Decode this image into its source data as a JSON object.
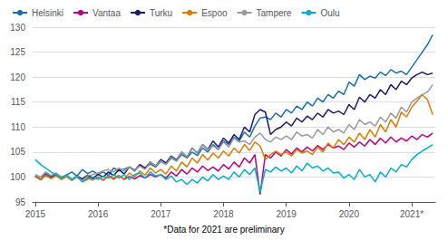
{
  "chart_data": {
    "type": "line",
    "footnote": "*Data for 2021 are preliminary",
    "categories": [
      "2015",
      null,
      null,
      null,
      null,
      null,
      null,
      null,
      null,
      null,
      null,
      null,
      "2016",
      null,
      null,
      null,
      null,
      null,
      null,
      null,
      null,
      null,
      null,
      null,
      "2017",
      null,
      null,
      null,
      null,
      null,
      null,
      null,
      null,
      null,
      null,
      null,
      "2018",
      null,
      null,
      null,
      null,
      null,
      null,
      null,
      null,
      null,
      null,
      null,
      "2019",
      null,
      null,
      null,
      null,
      null,
      null,
      null,
      null,
      null,
      null,
      null,
      "2020",
      null,
      null,
      null,
      null,
      null,
      null,
      null,
      null,
      null,
      null,
      null,
      "2021*",
      null,
      null,
      null,
      null
    ],
    "ylim": [
      95,
      130
    ],
    "yticks": [
      95,
      100,
      105,
      110,
      115,
      120,
      125,
      130
    ],
    "grid": true,
    "legend": "upper left",
    "series": [
      {
        "name": "Helsinki",
        "color": "#1a6faf",
        "values": [
          100.3,
          99.5,
          100.8,
          100.1,
          100.6,
          99.9,
          100.4,
          101.0,
          100.2,
          101.5,
          100.7,
          101.2,
          100.5,
          101.0,
          100.3,
          101.8,
          101.2,
          101.6,
          102.0,
          101.4,
          102.3,
          101.8,
          102.6,
          102.0,
          103.1,
          102.5,
          103.8,
          103.2,
          104.5,
          103.8,
          105.0,
          104.3,
          105.8,
          105.0,
          106.5,
          105.5,
          107.2,
          106.5,
          108.0,
          107.2,
          109.0,
          108.0,
          110.2,
          111.8,
          112.0,
          111.5,
          112.8,
          112.0,
          113.5,
          112.8,
          114.2,
          113.5,
          115.0,
          114.2,
          115.8,
          115.0,
          116.5,
          115.8,
          117.2,
          116.5,
          119.0,
          118.2,
          120.5,
          119.5,
          120.2,
          119.8,
          121.0,
          120.3,
          121.5,
          120.8,
          121.2,
          120.5,
          122.0,
          123.5,
          125.0,
          126.5,
          128.5
        ]
      },
      {
        "name": "Vantaa",
        "color": "#c0007a",
        "values": [
          100.1,
          99.5,
          100.3,
          99.8,
          100.5,
          99.7,
          100.2,
          99.5,
          100.0,
          99.3,
          100.1,
          99.6,
          100.0,
          99.4,
          100.2,
          99.7,
          100.3,
          99.5,
          100.1,
          99.6,
          100.3,
          99.8,
          100.5,
          100.0,
          100.5,
          99.8,
          101.0,
          100.2,
          101.5,
          100.6,
          101.8,
          101.0,
          102.2,
          101.3,
          102.0,
          101.2,
          102.5,
          101.6,
          103.0,
          102.0,
          103.8,
          102.8,
          104.5,
          96.5,
          104.5,
          103.8,
          105.0,
          104.2,
          105.5,
          104.6,
          105.8,
          105.0,
          106.0,
          105.2,
          106.3,
          105.5,
          106.5,
          105.8,
          106.2,
          105.5,
          106.8,
          106.0,
          107.0,
          106.2,
          107.5,
          106.5,
          107.8,
          106.8,
          108.0,
          107.0,
          107.8,
          107.2,
          108.2,
          107.5,
          108.5,
          108.0,
          108.8
        ]
      },
      {
        "name": "Turku",
        "color": "#1a1a6e",
        "values": [
          100.2,
          99.5,
          100.5,
          99.8,
          100.3,
          99.6,
          100.1,
          99.4,
          100.2,
          99.6,
          100.4,
          99.8,
          100.5,
          100.0,
          101.0,
          100.3,
          101.5,
          100.6,
          102.0,
          101.2,
          102.5,
          101.8,
          103.0,
          102.2,
          103.5,
          102.8,
          104.2,
          103.4,
          105.0,
          104.0,
          105.8,
          104.8,
          106.5,
          105.5,
          107.2,
          106.0,
          107.8,
          106.8,
          108.5,
          107.5,
          110.0,
          109.0,
          112.5,
          113.5,
          113.0,
          108.5,
          109.5,
          110.0,
          111.0,
          110.2,
          111.8,
          111.0,
          112.2,
          111.5,
          112.8,
          112.0,
          113.5,
          112.8,
          113.2,
          112.5,
          114.5,
          113.5,
          116.0,
          115.0,
          116.5,
          115.8,
          117.5,
          116.5,
          118.5,
          117.5,
          119.2,
          118.5,
          119.8,
          120.5,
          121.0,
          120.5,
          120.8
        ]
      },
      {
        "name": "Espoo",
        "color": "#e07b00",
        "values": [
          100.2,
          99.5,
          100.4,
          99.7,
          100.3,
          99.5,
          100.1,
          99.3,
          100.0,
          99.2,
          99.8,
          99.4,
          100.0,
          99.3,
          100.2,
          99.5,
          100.3,
          99.6,
          100.8,
          100.0,
          101.2,
          100.4,
          101.8,
          100.8,
          101.5,
          100.6,
          102.2,
          101.2,
          103.0,
          102.0,
          103.8,
          102.8,
          104.5,
          103.4,
          104.8,
          103.8,
          105.2,
          104.2,
          105.8,
          104.8,
          106.5,
          105.3,
          107.0,
          106.2,
          103.5,
          104.5,
          105.2,
          104.5,
          105.0,
          104.2,
          105.5,
          104.8,
          105.2,
          104.5,
          106.0,
          105.0,
          106.8,
          105.8,
          107.5,
          106.5,
          108.0,
          107.0,
          108.8,
          107.5,
          109.5,
          108.0,
          110.5,
          109.0,
          111.5,
          110.0,
          113.0,
          112.0,
          114.0,
          115.2,
          116.5,
          115.5,
          112.5
        ]
      },
      {
        "name": "Tampere",
        "color": "#999999",
        "values": [
          100.5,
          100.0,
          101.0,
          100.3,
          100.8,
          100.0,
          100.3,
          99.5,
          100.0,
          99.3,
          100.2,
          100.5,
          100.8,
          101.2,
          101.5,
          101.0,
          101.8,
          101.2,
          102.0,
          101.3,
          102.2,
          101.5,
          103.0,
          102.2,
          103.2,
          102.5,
          104.0,
          103.2,
          105.0,
          104.0,
          105.8,
          104.8,
          106.5,
          105.5,
          106.2,
          105.5,
          107.0,
          106.0,
          107.8,
          107.0,
          107.2,
          106.5,
          108.0,
          108.8,
          107.5,
          107.0,
          108.0,
          107.5,
          108.2,
          107.5,
          109.0,
          108.2,
          108.5,
          107.8,
          109.5,
          108.5,
          110.0,
          109.0,
          109.5,
          108.8,
          110.5,
          109.5,
          111.5,
          110.5,
          111.0,
          110.2,
          112.0,
          111.0,
          112.8,
          111.8,
          114.0,
          113.0,
          115.0,
          115.8,
          116.5,
          117.0,
          118.5
        ]
      },
      {
        "name": "Oulu",
        "color": "#00b0d0",
        "values": [
          103.5,
          102.5,
          101.8,
          101.0,
          100.5,
          99.8,
          100.5,
          99.5,
          100.2,
          99.0,
          99.5,
          100.0,
          99.5,
          100.2,
          99.8,
          100.5,
          99.8,
          100.5,
          99.5,
          100.5,
          100.8,
          99.8,
          101.0,
          100.2,
          100.5,
          99.5,
          100.2,
          99.0,
          99.5,
          98.5,
          99.5,
          98.8,
          100.0,
          99.2,
          100.5,
          99.5,
          100.2,
          99.5,
          101.0,
          100.0,
          101.5,
          100.5,
          101.8,
          97.0,
          101.5,
          101.0,
          102.0,
          101.2,
          101.8,
          100.8,
          102.2,
          101.2,
          102.8,
          101.8,
          102.2,
          101.2,
          101.8,
          100.8,
          101.0,
          99.8,
          100.5,
          99.5,
          101.5,
          100.0,
          100.5,
          99.0,
          101.0,
          100.0,
          101.8,
          101.0,
          102.5,
          102.0,
          103.5,
          104.5,
          105.2,
          105.8,
          106.5
        ]
      }
    ]
  }
}
